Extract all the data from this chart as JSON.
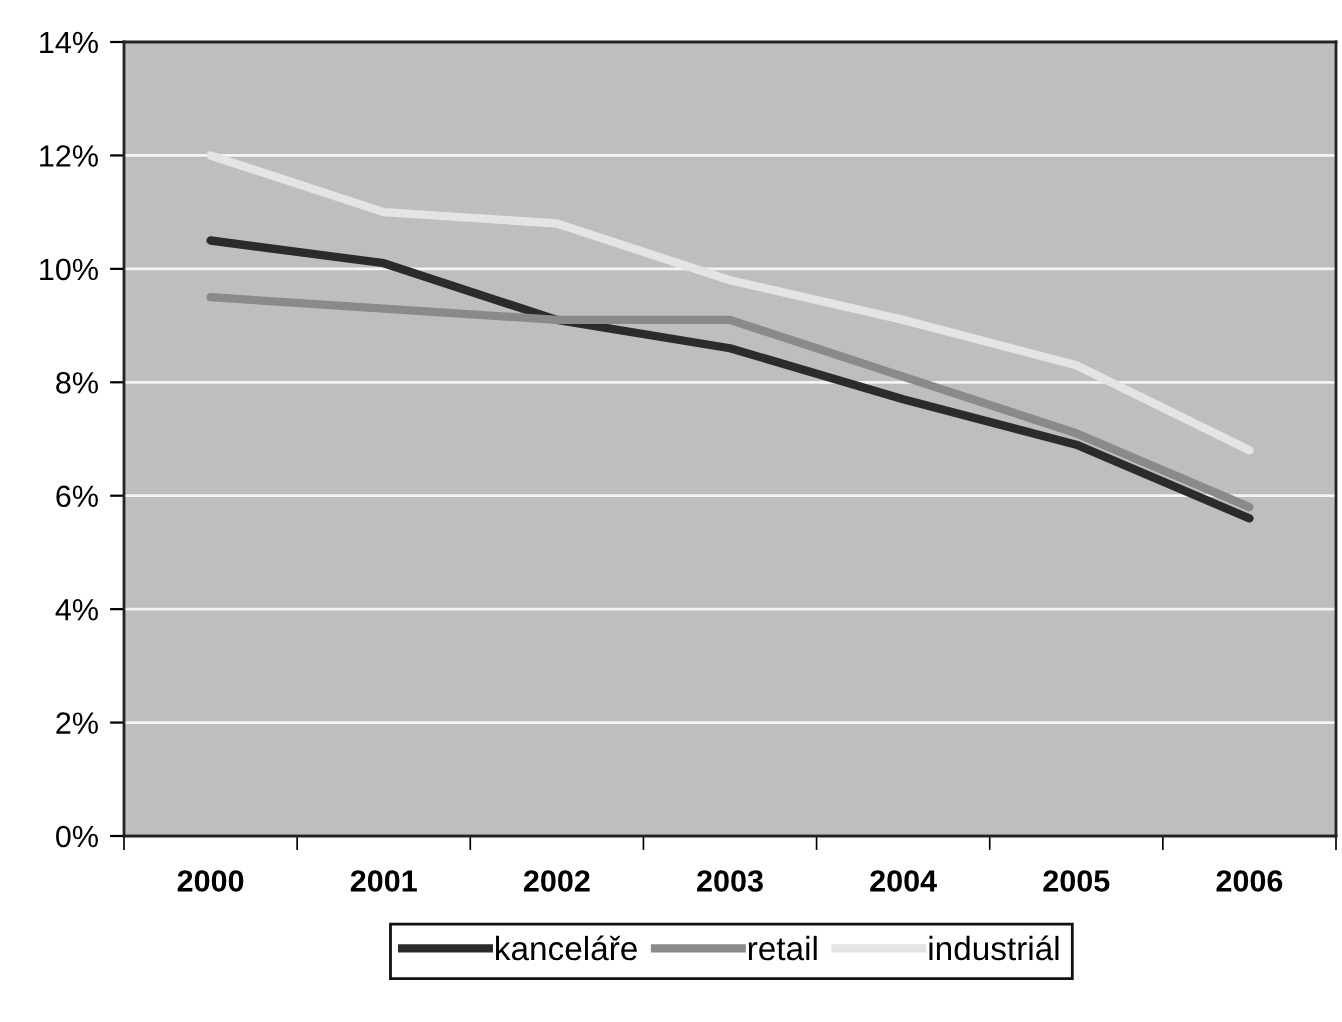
{
  "chart_data": {
    "type": "line",
    "categories": [
      "2000",
      "2001",
      "2002",
      "2003",
      "2004",
      "2005",
      "2006"
    ],
    "series": [
      {
        "name": "kanceláře",
        "color": "#2b2b2b",
        "values": [
          10.5,
          10.1,
          9.1,
          8.6,
          7.7,
          6.9,
          5.6
        ]
      },
      {
        "name": "retail",
        "color": "#8a8a8a",
        "values": [
          9.5,
          9.3,
          9.1,
          9.1,
          8.1,
          7.1,
          5.8
        ]
      },
      {
        "name": "industriál",
        "color": "#e4e4e4",
        "values": [
          12.0,
          11.0,
          10.8,
          9.8,
          9.1,
          8.3,
          6.8
        ]
      }
    ],
    "ylim": [
      0,
      14
    ],
    "yticks": [
      {
        "value": 0,
        "label": "0%"
      },
      {
        "value": 2,
        "label": "2%"
      },
      {
        "value": 4,
        "label": "4%"
      },
      {
        "value": 6,
        "label": "6%"
      },
      {
        "value": 8,
        "label": "8%"
      },
      {
        "value": 10,
        "label": "10%"
      },
      {
        "value": 12,
        "label": "12%"
      },
      {
        "value": 14,
        "label": "14%"
      }
    ],
    "grid": "y",
    "legend": "bottom",
    "marker": "none",
    "line_style": "solid"
  }
}
